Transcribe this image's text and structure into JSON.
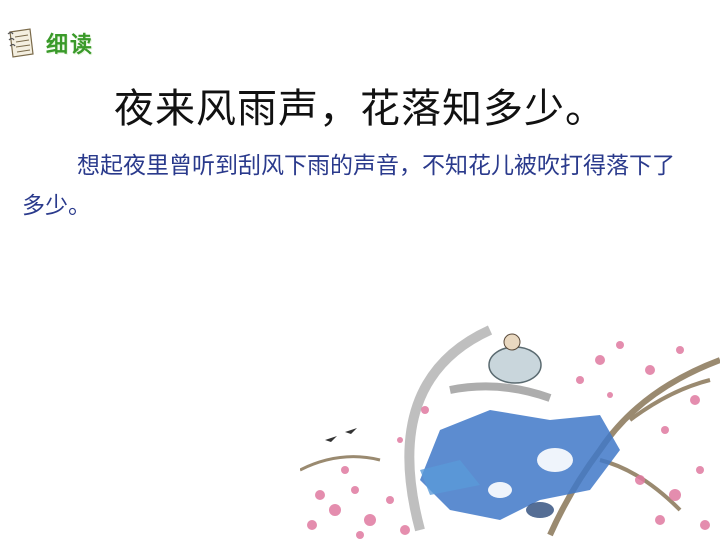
{
  "header": {
    "section_label": "细读",
    "icon": "notebook-icon"
  },
  "poem_line": "夜来风雨声，花落知多少。",
  "translation": "想起夜里曾听到刮风下雨的声音，不知花儿被吹打得落下了多少。",
  "colors": {
    "label": "#3a9a2a",
    "translation": "#2a3a8c",
    "title": "#111111"
  }
}
